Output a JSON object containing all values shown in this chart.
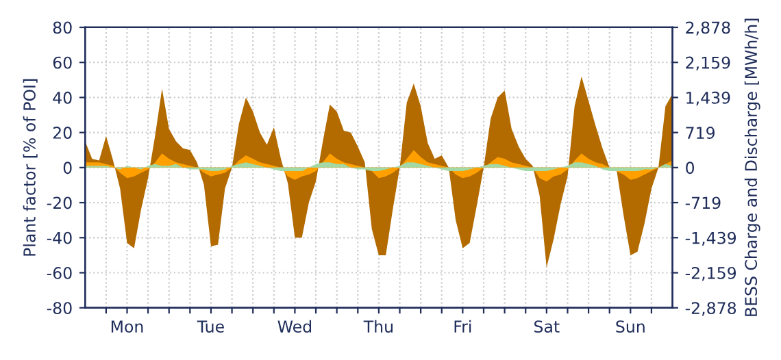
{
  "chart_data": {
    "type": "area",
    "ylabel": "Plant factor [% of POI]",
    "y2label": "BESS Charge and Discharge [MWh/h]",
    "categories": [
      null,
      null,
      null,
      null,
      null,
      null,
      "Mon",
      null,
      null,
      null,
      null,
      null,
      null,
      null,
      null,
      null,
      null,
      null,
      "Tue",
      null,
      null,
      null,
      null,
      null,
      null,
      null,
      null,
      null,
      null,
      null,
      "Wed",
      null,
      null,
      null,
      null,
      null,
      null,
      null,
      null,
      null,
      null,
      null,
      "Thu",
      null,
      null,
      null,
      null,
      null,
      null,
      null,
      null,
      null,
      null,
      null,
      "Fri",
      null,
      null,
      null,
      null,
      null,
      null,
      null,
      null,
      null,
      null,
      null,
      "Sat",
      null,
      null,
      null,
      null,
      null,
      null,
      null,
      null,
      null,
      null,
      null,
      "Sun",
      null,
      null,
      null,
      null,
      null,
      null
    ],
    "series": [
      {
        "color": "#b36b00",
        "values": [
          15,
          5,
          4,
          18,
          4,
          -12,
          -43,
          -46,
          -24,
          -6,
          18,
          45,
          22,
          15,
          11,
          10,
          3,
          -10,
          -45,
          -44,
          -12,
          0,
          25,
          40,
          32,
          20,
          13,
          23,
          5,
          -9,
          -40,
          -40,
          -20,
          -8,
          15,
          36,
          32,
          21,
          20,
          12,
          3,
          -35,
          -50,
          -50,
          -24,
          0,
          37,
          48,
          35,
          14,
          5,
          7,
          0,
          -30,
          -46,
          -43,
          -22,
          0,
          28,
          40,
          44,
          22,
          12,
          5,
          1,
          -16,
          -57,
          -41,
          -21,
          -5,
          35,
          52,
          38,
          24,
          11,
          0,
          -1,
          -27,
          -50,
          -48,
          -32,
          -12,
          0,
          35,
          42
        ]
      },
      {
        "color": "#ffa000",
        "values": [
          3,
          3,
          3,
          2,
          1,
          -3,
          -6,
          -5,
          -3,
          -1,
          3,
          8,
          5,
          3,
          2,
          1,
          0,
          -3,
          -5,
          -4,
          -3,
          0,
          4,
          7,
          5,
          3,
          2,
          1,
          0,
          -5,
          -7,
          -5,
          -4,
          -2,
          3,
          8,
          5,
          3,
          2,
          1,
          0,
          -2,
          -6,
          -5,
          -3,
          0,
          5,
          10,
          6,
          3,
          2,
          1,
          0,
          -4,
          -6,
          -5,
          -3,
          0,
          3,
          6,
          5,
          3,
          2,
          1,
          0,
          -6,
          -8,
          -5,
          -4,
          -1,
          4,
          8,
          5,
          3,
          2,
          0,
          -2,
          -4,
          -7,
          -6,
          -4,
          -2,
          0,
          2,
          4
        ]
      },
      {
        "color": "#a3d9a5",
        "values": [
          1,
          1,
          1,
          1,
          0,
          -1,
          1,
          0,
          -1,
          1,
          2,
          1,
          1,
          2,
          0,
          -1,
          -1,
          -1,
          -2,
          -2,
          -1,
          1,
          2,
          3,
          2,
          1,
          0,
          -1,
          -2,
          -2,
          -2,
          -2,
          0,
          2,
          3,
          3,
          2,
          2,
          0,
          -1,
          -1,
          -2,
          -2,
          -1,
          0,
          1,
          3,
          3,
          2,
          1,
          0,
          -1,
          -2,
          -2,
          -2,
          -1,
          0,
          1,
          2,
          2,
          1,
          0,
          -1,
          -2,
          -2,
          -2,
          -2,
          -1,
          0,
          1,
          3,
          3,
          2,
          1,
          -1,
          -2,
          -2,
          -2,
          -2,
          -2,
          -1,
          -1,
          0,
          2,
          1
        ]
      }
    ],
    "ylim": [
      -80,
      80
    ],
    "yticks": [
      -80,
      -60,
      -40,
      -20,
      0,
      20,
      40,
      60,
      80
    ],
    "y2lim": [
      -2878,
      2878
    ],
    "y2ticks": [
      {
        "value": -2878,
        "label": "-2,878"
      },
      {
        "value": -2159,
        "label": "-2,159"
      },
      {
        "value": -1439,
        "label": "-1,439"
      },
      {
        "value": -719,
        "label": "-719"
      },
      0,
      719,
      {
        "value": 1439,
        "label": "1,439"
      },
      {
        "value": 2159,
        "label": "2,159"
      },
      {
        "value": 2878,
        "label": "2,878"
      }
    ],
    "grid": true,
    "legend": false
  }
}
